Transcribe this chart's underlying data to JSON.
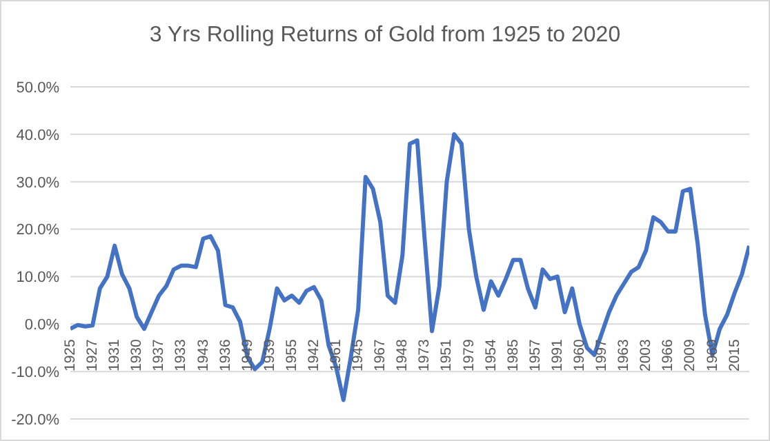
{
  "chart_data": {
    "type": "line",
    "title": "3 Yrs Rolling Returns of Gold from 1925 to 2020",
    "categories": [
      "1925",
      null,
      null,
      "1927",
      null,
      null,
      "1931",
      null,
      null,
      "1930",
      null,
      null,
      "1937",
      null,
      null,
      "1933",
      null,
      null,
      "1943",
      null,
      null,
      "1936",
      null,
      null,
      "1949",
      null,
      null,
      "1939",
      null,
      null,
      "1955",
      null,
      null,
      "1942",
      null,
      null,
      "1961",
      null,
      null,
      "1945",
      null,
      null,
      "1967",
      null,
      null,
      "1948",
      null,
      null,
      "1973",
      null,
      null,
      "1951",
      null,
      null,
      "1979",
      null,
      null,
      "1954",
      null,
      null,
      "1985",
      null,
      null,
      "1957",
      null,
      null,
      "1991",
      null,
      null,
      "1960",
      null,
      null,
      "1997",
      null,
      null,
      "1963",
      null,
      null,
      "2003",
      null,
      null,
      "1966",
      null,
      null,
      "2009",
      null,
      null,
      "1969",
      null,
      null,
      "2015",
      null,
      null
    ],
    "series": [
      {
        "color": "#4472c4",
        "values": [
          -1,
          -0.2,
          -0.5,
          -0.3,
          7.5,
          10,
          16.5,
          10.5,
          7.5,
          1.5,
          -1,
          2.5,
          6,
          8,
          11.5,
          12.3,
          12.3,
          12,
          18,
          18.5,
          15.5,
          4,
          3.5,
          0.5,
          -7,
          -9.5,
          -8,
          -1,
          7.5,
          5,
          6,
          4.5,
          7,
          7.8,
          5,
          -4.5,
          -9,
          -16,
          -7,
          3,
          31,
          28.5,
          21.5,
          6,
          4.5,
          14.5,
          38,
          38.7,
          18,
          -1.5,
          8,
          30,
          40,
          38,
          20,
          10,
          3,
          9,
          6,
          9.5,
          13.5,
          13.5,
          7.5,
          3.5,
          11.5,
          9.5,
          10,
          2.5,
          7.5,
          0,
          -5,
          -6.5,
          -2,
          2.5,
          6,
          8.5,
          11,
          12,
          15.5,
          22.5,
          21.5,
          19.5,
          19.5,
          28,
          28.5,
          17,
          2,
          -6.5,
          -1,
          2,
          6.5,
          10.5,
          16.5
        ]
      }
    ],
    "ylim": [
      -20,
      50
    ],
    "yticks": [
      {
        "value": -20,
        "label": "-20.0%"
      },
      {
        "value": -10,
        "label": "-10.0%"
      },
      {
        "value": 0,
        "label": "0.0%"
      },
      {
        "value": 10,
        "label": "10.0%"
      },
      {
        "value": 20,
        "label": "20.0%"
      },
      {
        "value": 30,
        "label": "30.0%"
      },
      {
        "value": 40,
        "label": "40.0%"
      },
      {
        "value": 50,
        "label": "50.0%"
      }
    ],
    "grid": "y",
    "legend": false,
    "marker": "none",
    "line_style": "solid"
  }
}
